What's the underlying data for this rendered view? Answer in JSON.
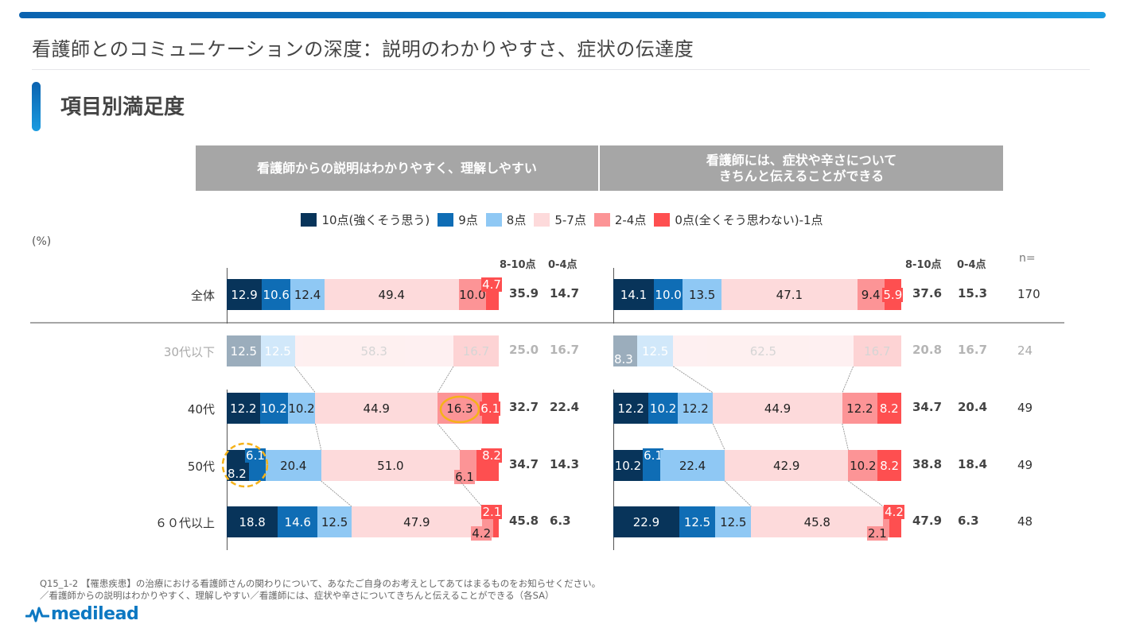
{
  "page": {
    "title": "看護師とのコミュニケーションの深度：説明のわかりやすさ、症状の伝達度",
    "section_title": "項目別満足度",
    "percent_unit": "(%)",
    "footnote": "Q15_1-2 【罹患疾患】の治療における看護師さんの関わりについて、あなたご自身のお考えとしてあてはまるものをお知らせください。\n／看護師からの説明はわかりやすく、理解しやすい／看護師には、症状や辛さについてきちんと伝えることができる（各SA）",
    "logo_text": "medilead",
    "logo_icon": "pulse-icon"
  },
  "colors": {
    "accent": "#0d78c2",
    "header_bg": "#a6a6a6",
    "highlight_circle": "#f5b21a"
  },
  "chart_data": {
    "type": "bar",
    "orientation": "horizontal-stacked-100",
    "legend": [
      {
        "name": "10点(強くそう思う)",
        "color": "#08345a"
      },
      {
        "name": "9点",
        "color": "#0f6db5"
      },
      {
        "name": "8点",
        "color": "#8fc8f4"
      },
      {
        "name": "5-7点",
        "color": "#fddadb"
      },
      {
        "name": "2-4点",
        "color": "#fc9496"
      },
      {
        "name": "0点(全くそう思わない)-1点",
        "color": "#fe4f50"
      }
    ],
    "legend_placement": "top-center",
    "categories": [
      "全体",
      "30代以下",
      "40代",
      "50代",
      "６０代以上"
    ],
    "greyed_categories": [
      "30代以下"
    ],
    "n_header": "n=",
    "n": [
      170,
      24,
      49,
      49,
      48
    ],
    "summary_headers": [
      "8-10点",
      "0-4点"
    ],
    "xlim": [
      0,
      100
    ],
    "panels": [
      {
        "title": "看護師からの説明はわかりやすく、理解しやすい",
        "series": [
          {
            "name": "10点(強くそう思う)",
            "values": [
              12.9,
              12.5,
              12.2,
              8.2,
              18.8
            ]
          },
          {
            "name": "9点",
            "values": [
              10.6,
              0,
              10.2,
              6.1,
              14.6
            ]
          },
          {
            "name": "8点",
            "values": [
              12.4,
              12.5,
              10.2,
              20.4,
              12.5
            ]
          },
          {
            "name": "5-7点",
            "values": [
              49.4,
              58.3,
              44.9,
              51.0,
              47.9
            ]
          },
          {
            "name": "2-4点",
            "values": [
              10.0,
              16.7,
              16.3,
              6.1,
              4.2
            ]
          },
          {
            "name": "0点(全くそう思わない)-1点",
            "values": [
              4.7,
              0,
              6.1,
              8.2,
              2.1
            ]
          }
        ],
        "summary_8_10": [
          35.9,
          25.0,
          32.7,
          34.7,
          45.8
        ],
        "summary_0_4": [
          14.7,
          16.7,
          22.4,
          14.3,
          6.3
        ],
        "annotations": [
          {
            "type": "solid-circle",
            "category": "40代",
            "series": "2-4点",
            "value": 16.3
          },
          {
            "type": "dashed-circle",
            "category": "50代",
            "series": [
              "10点(強くそう思う)",
              "9点"
            ],
            "values": [
              8.2,
              6.1
            ]
          }
        ]
      },
      {
        "title": "看護師には、症状や辛さについて\nきちんと伝えることができる",
        "series": [
          {
            "name": "10点(強くそう思う)",
            "values": [
              14.1,
              8.3,
              12.2,
              10.2,
              22.9
            ]
          },
          {
            "name": "9点",
            "values": [
              10.0,
              0,
              10.2,
              6.1,
              12.5
            ]
          },
          {
            "name": "8点",
            "values": [
              13.5,
              12.5,
              12.2,
              22.4,
              12.5
            ]
          },
          {
            "name": "5-7点",
            "values": [
              47.1,
              62.5,
              44.9,
              42.9,
              45.8
            ]
          },
          {
            "name": "2-4点",
            "values": [
              9.4,
              16.7,
              12.2,
              10.2,
              2.1
            ]
          },
          {
            "name": "0点(全くそう思わない)-1点",
            "values": [
              5.9,
              0,
              8.2,
              8.2,
              4.2
            ]
          }
        ],
        "summary_8_10": [
          37.6,
          20.8,
          34.7,
          38.8,
          47.9
        ],
        "summary_0_4": [
          15.3,
          16.7,
          20.4,
          18.4,
          6.3
        ]
      }
    ]
  }
}
